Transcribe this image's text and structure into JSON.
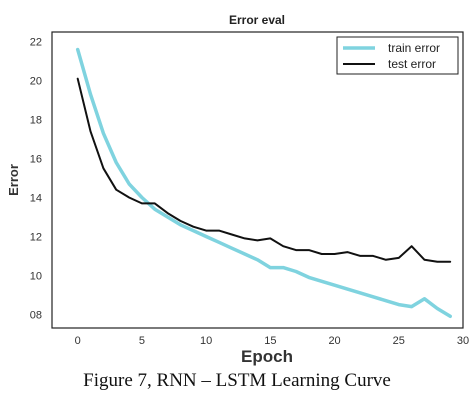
{
  "caption": "Figure 7, RNN – LSTM Learning Curve",
  "chart_data": {
    "type": "line",
    "title": "Error eval",
    "xlabel": "Epoch",
    "ylabel": "Error",
    "xlim": [
      -2,
      30
    ],
    "ylim": [
      7.3,
      22.5
    ],
    "xticks": [
      0,
      5,
      10,
      15,
      20,
      25,
      30
    ],
    "yticks": [
      8,
      10,
      12,
      14,
      16,
      18,
      20,
      22
    ],
    "ytick_labels": [
      "08",
      "10",
      "12",
      "14",
      "16",
      "18",
      "20",
      "22"
    ],
    "grid": false,
    "legend_position": "top-right",
    "series": [
      {
        "name": "train error",
        "color": "#7fd3df",
        "x": [
          0,
          1,
          2,
          3,
          4,
          5,
          6,
          7,
          8,
          9,
          10,
          11,
          12,
          13,
          14,
          15,
          16,
          17,
          18,
          19,
          20,
          21,
          22,
          23,
          24,
          25,
          26,
          27,
          28,
          29
        ],
        "y": [
          21.6,
          19.3,
          17.3,
          15.8,
          14.7,
          14.0,
          13.4,
          13.0,
          12.6,
          12.3,
          12.0,
          11.7,
          11.4,
          11.1,
          10.8,
          10.4,
          10.4,
          10.2,
          9.9,
          9.7,
          9.5,
          9.3,
          9.1,
          8.9,
          8.7,
          8.5,
          8.4,
          8.8,
          8.3,
          7.9
        ]
      },
      {
        "name": "test error",
        "color": "#111111",
        "x": [
          0,
          1,
          2,
          3,
          4,
          5,
          6,
          7,
          8,
          9,
          10,
          11,
          12,
          13,
          14,
          15,
          16,
          17,
          18,
          19,
          20,
          21,
          22,
          23,
          24,
          25,
          26,
          27,
          28,
          29
        ],
        "y": [
          20.1,
          17.4,
          15.5,
          14.4,
          14.0,
          13.7,
          13.7,
          13.2,
          12.8,
          12.5,
          12.3,
          12.3,
          12.1,
          11.9,
          11.8,
          11.9,
          11.5,
          11.3,
          11.3,
          11.1,
          11.1,
          11.2,
          11.0,
          11.0,
          10.8,
          10.9,
          11.5,
          10.8,
          10.7,
          10.7
        ]
      }
    ]
  }
}
